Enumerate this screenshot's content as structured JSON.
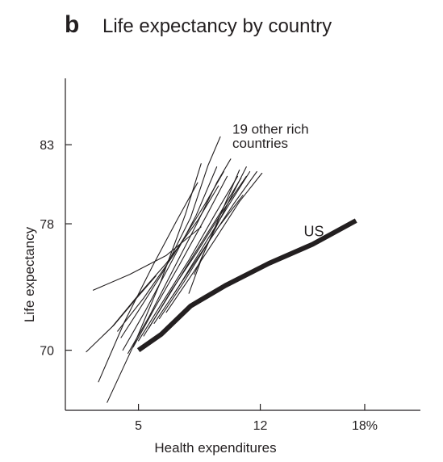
{
  "panel_label": "b",
  "chart_data": {
    "type": "line",
    "title": "Life expectancy by country",
    "xlabel": "Health expenditures",
    "ylabel": "Life expectancy",
    "x_ticks": [
      {
        "value": 5,
        "label": "5"
      },
      {
        "value": 12,
        "label": "12"
      },
      {
        "value": 18,
        "label": "18%"
      }
    ],
    "y_ticks": [
      {
        "value": 70,
        "label": "70"
      },
      {
        "value": 78,
        "label": "78"
      },
      {
        "value": 83,
        "label": "83"
      }
    ],
    "xlim": [
      0.8,
      21.2
    ],
    "ylim": [
      66.2,
      87.2
    ],
    "grid": false,
    "annotations": [
      {
        "text": "19 other rich",
        "x": 10.4,
        "y": 83.7
      },
      {
        "text": "countries",
        "x": 10.4,
        "y": 82.8
      },
      {
        "text": "US",
        "x": 14.5,
        "y": 77.2
      }
    ],
    "series": [
      {
        "name": "US",
        "style": "bold",
        "x": [
          5.0,
          6.3,
          8.0,
          10.0,
          12.5,
          15.0,
          17.5
        ],
        "y": [
          70.0,
          71.0,
          72.8,
          74.1,
          75.5,
          76.7,
          78.2
        ]
      },
      {
        "style": "thin",
        "x": [
          2.0,
          3.6,
          4.9,
          6.0
        ],
        "y": [
          69.9,
          71.6,
          73.3,
          74.7
        ]
      },
      {
        "style": "thin",
        "x": [
          3.2,
          4.8,
          6.3,
          7.7,
          8.6
        ],
        "y": [
          66.7,
          70.5,
          74.4,
          78.6,
          81.8
        ]
      },
      {
        "style": "thin",
        "x": [
          2.7,
          4.2,
          5.8,
          7.2,
          8.4
        ],
        "y": [
          68.0,
          71.8,
          75.3,
          78.2,
          80.6
        ]
      },
      {
        "style": "thin",
        "x": [
          3.5,
          5.0,
          6.6,
          8.4,
          9.6
        ],
        "y": [
          71.5,
          73.5,
          75.5,
          78.2,
          80.4
        ]
      },
      {
        "style": "thin",
        "x": [
          4.0,
          5.0,
          6.5,
          8.0,
          9.0,
          9.7
        ],
        "y": [
          70.8,
          72.5,
          75.1,
          78.4,
          81.7,
          83.5
        ]
      },
      {
        "style": "thin",
        "x": [
          4.1,
          5.4,
          6.9,
          8.3,
          9.5
        ],
        "y": [
          70.0,
          72.5,
          75.6,
          78.5,
          81.6
        ]
      },
      {
        "style": "thin",
        "x": [
          3.8,
          5.3,
          7.0,
          8.8,
          9.9
        ],
        "y": [
          71.2,
          73.3,
          76.0,
          79.2,
          81.3
        ]
      },
      {
        "style": "thin",
        "x": [
          4.4,
          5.6,
          7.0,
          8.4,
          9.5,
          10.3
        ],
        "y": [
          69.8,
          72.1,
          75.1,
          78.1,
          80.6,
          82.1
        ]
      },
      {
        "style": "thin",
        "x": [
          4.7,
          5.9,
          7.4,
          8.9,
          10.1
        ],
        "y": [
          70.2,
          72.6,
          75.5,
          78.5,
          81.0
        ]
      },
      {
        "style": "thin",
        "x": [
          5.0,
          6.3,
          7.9,
          9.4,
          10.7
        ],
        "y": [
          70.6,
          72.9,
          75.7,
          78.6,
          81.0
        ]
      },
      {
        "style": "thin",
        "x": [
          5.3,
          6.6,
          8.1,
          9.7,
          10.9
        ],
        "y": [
          70.9,
          73.2,
          75.9,
          78.7,
          80.9
        ]
      },
      {
        "style": "thin",
        "x": [
          5.6,
          6.9,
          8.3,
          9.9,
          11.2
        ],
        "y": [
          71.4,
          73.8,
          76.1,
          78.9,
          81.0
        ]
      },
      {
        "style": "thin",
        "x": [
          5.9,
          7.3,
          8.8,
          10.2,
          11.4
        ],
        "y": [
          71.7,
          74.0,
          76.7,
          79.2,
          81.3
        ]
      },
      {
        "style": "thin",
        "x": [
          6.2,
          7.6,
          9.0,
          10.5,
          11.8
        ],
        "y": [
          72.0,
          74.3,
          76.8,
          79.3,
          81.3
        ]
      },
      {
        "style": "thin",
        "x": [
          6.6,
          7.9,
          9.4,
          10.8,
          12.1
        ],
        "y": [
          72.4,
          74.5,
          77.0,
          79.4,
          81.2
        ]
      },
      {
        "style": "thin",
        "x": [
          7.0,
          8.2,
          9.6,
          11.0
        ],
        "y": [
          73.5,
          75.5,
          77.8,
          79.8
        ]
      },
      {
        "style": "thin",
        "x": [
          7.9,
          8.7,
          9.8,
          10.8
        ],
        "y": [
          73.6,
          76.0,
          78.8,
          81.4
        ]
      },
      {
        "style": "thin",
        "x": [
          8.2,
          9.1,
          10.1,
          11.2
        ],
        "y": [
          74.8,
          77.0,
          79.2,
          81.6
        ]
      },
      {
        "style": "thin",
        "x": [
          2.4,
          4.5,
          6.6,
          8.6
        ],
        "y": [
          73.8,
          74.8,
          76.0,
          77.8
        ]
      }
    ]
  }
}
